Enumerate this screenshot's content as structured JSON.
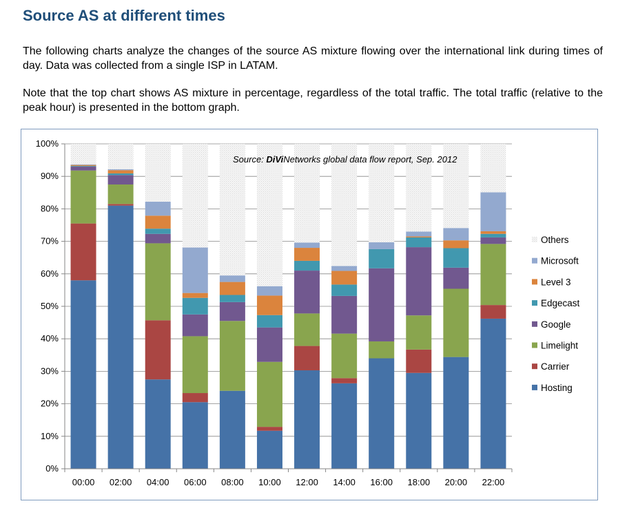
{
  "header": {
    "title": "Source AS at different times",
    "paragraph1": "The following charts analyze the changes of the source AS mixture flowing over the international link during times of day. Data was collected from a single ISP in LATAM.",
    "paragraph2": "Note that the top chart shows AS mixture in percentage, regardless of the total traffic. The total traffic (relative to the peak hour) is presented in the bottom graph."
  },
  "chart_data": {
    "type": "bar",
    "stacked": true,
    "title": "",
    "xlabel": "",
    "ylabel": "",
    "ylim": [
      0,
      100
    ],
    "yticks": [
      "0%",
      "10%",
      "20%",
      "30%",
      "40%",
      "50%",
      "60%",
      "70%",
      "80%",
      "90%",
      "100%"
    ],
    "grid": true,
    "legend_position": "right",
    "annotation": {
      "prefix": "Source: ",
      "brand": "DiVi",
      "rest": "Networks  global data flow report, Sep. 2012"
    },
    "categories": [
      "00:00",
      "02:00",
      "04:00",
      "06:00",
      "08:00",
      "10:00",
      "12:00",
      "14:00",
      "16:00",
      "18:00",
      "20:00",
      "22:00"
    ],
    "series": [
      {
        "name": "Hosting",
        "color": "#4572a7",
        "values": [
          58,
          81,
          27.5,
          20.5,
          24,
          11.7,
          30.3,
          26.3,
          34,
          29.5,
          34.4,
          46.2
        ]
      },
      {
        "name": "Carrier",
        "color": "#aa4643",
        "values": [
          17.5,
          0.5,
          18.2,
          2.8,
          0,
          1.2,
          7.5,
          1.6,
          0,
          7.2,
          0,
          4.2
        ]
      },
      {
        "name": "Limelight",
        "color": "#89a54e",
        "values": [
          16.3,
          6,
          23.7,
          17.5,
          21.5,
          20,
          10,
          13.7,
          5.2,
          10.5,
          21,
          18.8
        ]
      },
      {
        "name": "Google",
        "color": "#71588f",
        "values": [
          1.2,
          2.9,
          2.9,
          6.7,
          5.8,
          10.6,
          13.2,
          11.6,
          22.5,
          21,
          6.5,
          2
        ]
      },
      {
        "name": "Edgecast",
        "color": "#4198af",
        "values": [
          0.2,
          0.5,
          1.6,
          5.1,
          2.2,
          3.8,
          3,
          3.5,
          5.9,
          3,
          6,
          1.1
        ]
      },
      {
        "name": "Level 3",
        "color": "#db843d",
        "values": [
          0.3,
          1,
          4,
          1.5,
          4,
          6,
          4,
          4.2,
          0,
          0.3,
          2.4,
          0.8
        ]
      },
      {
        "name": "Microsoft",
        "color": "#93a9cf",
        "values": [
          0.2,
          0.3,
          4.3,
          14,
          2,
          2.9,
          1.6,
          1.5,
          2.1,
          1.5,
          3.8,
          12
        ]
      },
      {
        "name": "Others",
        "color": "#ececec",
        "values": [
          6.3,
          7.8,
          17.8,
          31.9,
          40.5,
          43.8,
          30.4,
          37.6,
          30.3,
          27,
          25.9,
          14.9
        ]
      }
    ]
  }
}
